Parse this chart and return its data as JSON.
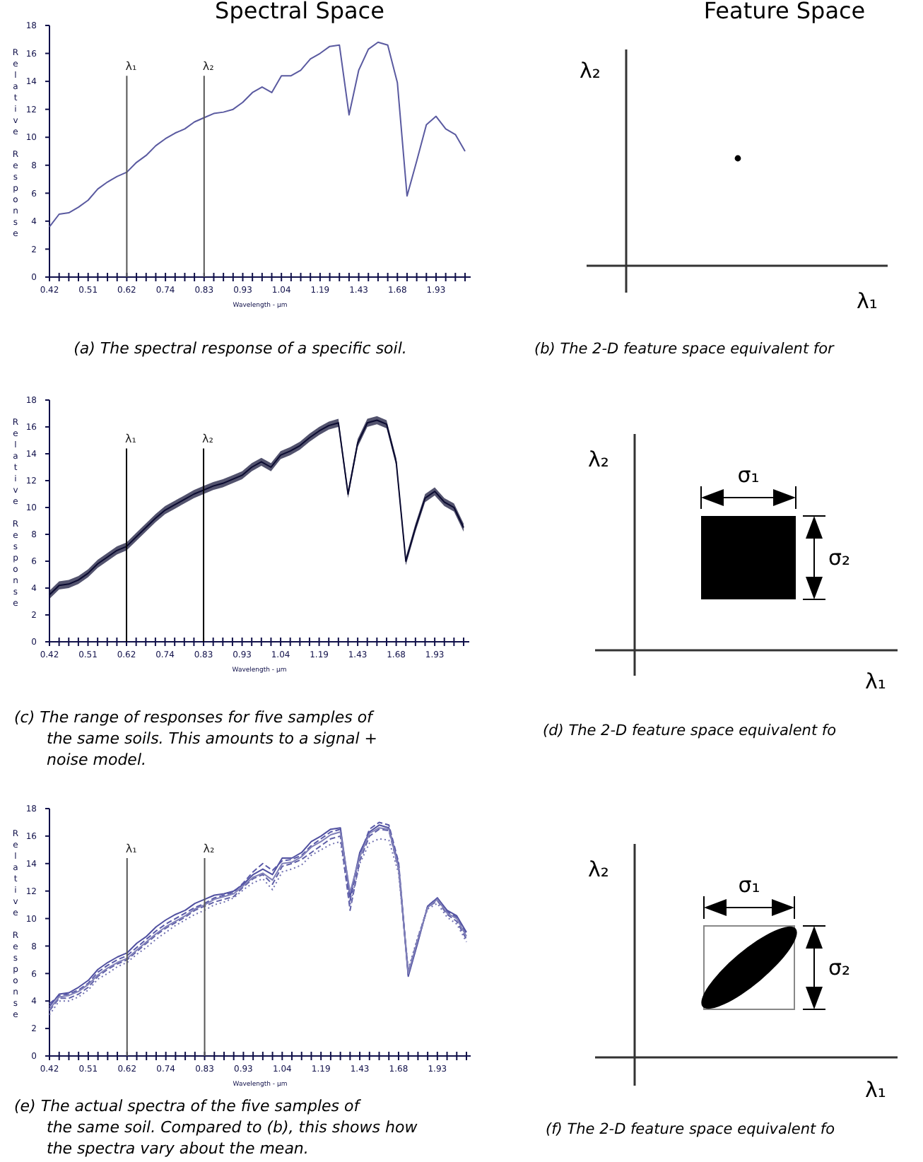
{
  "chart_data": [
    {
      "type": "line",
      "title": "Spectral Space",
      "xlabel": "Wavelength - µm",
      "ylabel": "Relative Response",
      "categories": [
        "0.42",
        null,
        null,
        null,
        "0.51",
        null,
        null,
        null,
        "0.62",
        null,
        null,
        null,
        "0.74",
        null,
        null,
        null,
        "0.83",
        null,
        null,
        null,
        "0.93",
        null,
        null,
        null,
        "1.04",
        null,
        null,
        null,
        "1.19",
        null,
        null,
        null,
        "1.43",
        null,
        null,
        null,
        "1.68",
        null,
        null,
        null,
        "1.93",
        null,
        null,
        null
      ],
      "ylim": [
        0,
        18
      ],
      "yticks": [
        0,
        2,
        4,
        6,
        8,
        10,
        12,
        14,
        16,
        18
      ],
      "series": [
        {
          "color": "#5a5aa0",
          "values": [
            3.6,
            4.5,
            4.6,
            5.0,
            5.5,
            6.3,
            6.8,
            7.2,
            7.5,
            8.2,
            8.7,
            9.4,
            9.9,
            10.3,
            10.6,
            11.1,
            11.4,
            11.7,
            11.8,
            12.0,
            12.5,
            13.2,
            13.6,
            13.2,
            14.4,
            14.4,
            14.8,
            15.6,
            16.0,
            16.5,
            16.6,
            11.6,
            14.8,
            16.3,
            16.8,
            16.6,
            13.9,
            5.8,
            8.3,
            10.9,
            11.5,
            10.6,
            10.2,
            9.0
          ]
        }
      ],
      "ref_lines": [
        {
          "axis": "x",
          "value": "0.62",
          "label": "λ₁",
          "color": "#555555"
        },
        {
          "axis": "x",
          "value": "0.83",
          "label": "λ₂",
          "color": "#555555"
        }
      ],
      "annotations": [
        "(a) The spectral response of a specific soil."
      ]
    },
    {
      "type": "other",
      "title": "Feature Space",
      "xlabel": "λ₁",
      "ylabel": "λ₂",
      "annotations": [
        "(b) The 2-D feature space equivalent for"
      ]
    },
    {
      "type": "line",
      "xlabel": "Wavelength - µm",
      "ylabel": "Relative Response",
      "categories": [
        "0.42",
        null,
        null,
        null,
        "0.51",
        null,
        null,
        null,
        "0.62",
        null,
        null,
        null,
        "0.74",
        null,
        null,
        null,
        "0.83",
        null,
        null,
        null,
        "0.93",
        null,
        null,
        null,
        "1.04",
        null,
        null,
        null,
        "1.19",
        null,
        null,
        null,
        "1.43",
        null,
        null,
        null,
        "1.68",
        null,
        null,
        null,
        "1.93",
        null,
        null,
        null
      ],
      "ylim": [
        0,
        18
      ],
      "yticks": [
        0,
        2,
        4,
        6,
        8,
        10,
        12,
        14,
        16,
        18
      ],
      "series": [
        {
          "color": "#0a0a30",
          "values": [
            3.5,
            4.2,
            4.3,
            4.6,
            5.1,
            5.8,
            6.3,
            6.8,
            7.1,
            7.8,
            8.5,
            9.2,
            9.8,
            10.2,
            10.6,
            11.0,
            11.3,
            11.6,
            11.8,
            12.1,
            12.4,
            13.0,
            13.4,
            13.0,
            13.9,
            14.2,
            14.6,
            15.2,
            15.7,
            16.1,
            16.3,
            11.0,
            14.8,
            16.3,
            16.5,
            16.2,
            13.4,
            6.0,
            8.5,
            10.7,
            11.2,
            10.4,
            10.0,
            8.5
          ],
          "lower": [
            3.2,
            3.9,
            4.0,
            4.3,
            4.8,
            5.5,
            6.0,
            6.5,
            6.8,
            7.5,
            8.2,
            8.9,
            9.5,
            9.9,
            10.3,
            10.7,
            11.0,
            11.3,
            11.5,
            11.8,
            12.1,
            12.7,
            13.1,
            12.7,
            13.6,
            13.9,
            14.3,
            14.9,
            15.4,
            15.8,
            16.0,
            10.7,
            14.5,
            16.0,
            16.2,
            15.9,
            13.1,
            5.7,
            8.2,
            10.4,
            10.9,
            10.1,
            9.7,
            8.2
          ],
          "upper": [
            3.8,
            4.5,
            4.6,
            4.9,
            5.4,
            6.1,
            6.6,
            7.1,
            7.4,
            8.1,
            8.8,
            9.5,
            10.1,
            10.5,
            10.9,
            11.3,
            11.6,
            11.9,
            12.1,
            12.4,
            12.7,
            13.3,
            13.7,
            13.3,
            14.2,
            14.5,
            14.9,
            15.5,
            16.0,
            16.4,
            16.6,
            11.3,
            15.1,
            16.6,
            16.8,
            16.5,
            13.7,
            6.3,
            8.8,
            11.0,
            11.5,
            10.7,
            10.3,
            8.8
          ]
        }
      ],
      "ref_lines": [
        {
          "axis": "x",
          "value": "0.62",
          "label": "λ₁",
          "color": "#000000"
        },
        {
          "axis": "x",
          "value": "0.83",
          "label": "λ₂",
          "color": "#000000"
        }
      ],
      "annotations": [
        "(c) The range of responses for five samples of the same soils. This amounts to a signal + noise model."
      ]
    },
    {
      "type": "other",
      "xlabel": "λ₁",
      "ylabel": "λ₂",
      "annotations": [
        "(d) The 2-D feature space equivalent fo",
        "σ₁",
        "σ₂"
      ]
    },
    {
      "type": "line",
      "xlabel": "Wavelength - µm",
      "ylabel": "Relative Response",
      "categories": [
        "0.42",
        null,
        null,
        null,
        "0.51",
        null,
        null,
        null,
        "0.62",
        null,
        null,
        null,
        "0.74",
        null,
        null,
        null,
        "0.83",
        null,
        null,
        null,
        "0.93",
        null,
        null,
        null,
        "1.04",
        null,
        null,
        null,
        "1.19",
        null,
        null,
        null,
        "1.43",
        null,
        null,
        null,
        "1.68",
        null,
        null,
        null,
        "1.93",
        null,
        null,
        null
      ],
      "ylim": [
        0,
        18
      ],
      "yticks": [
        0,
        2,
        4,
        6,
        8,
        10,
        12,
        14,
        16,
        18
      ],
      "series": [
        {
          "color": "#5050a0",
          "line_style": "solid",
          "values": [
            3.6,
            4.5,
            4.6,
            5.0,
            5.5,
            6.3,
            6.8,
            7.2,
            7.5,
            8.2,
            8.7,
            9.4,
            9.9,
            10.3,
            10.6,
            11.1,
            11.4,
            11.7,
            11.8,
            12.0,
            12.5,
            13.2,
            13.6,
            13.2,
            14.4,
            14.4,
            14.8,
            15.6,
            16.0,
            16.5,
            16.6,
            11.6,
            14.8,
            16.3,
            16.8,
            16.6,
            13.9,
            5.8,
            8.3,
            10.9,
            11.5,
            10.6,
            10.2,
            9.0
          ]
        },
        {
          "color": "#6060a8",
          "line_style": "dashed",
          "values": [
            3.3,
            4.2,
            4.2,
            4.5,
            5.0,
            5.8,
            6.3,
            6.7,
            7.0,
            7.6,
            8.2,
            8.8,
            9.3,
            9.7,
            10.1,
            10.6,
            10.9,
            11.2,
            11.4,
            11.6,
            12.3,
            12.9,
            13.2,
            12.5,
            13.8,
            14.0,
            14.3,
            14.8,
            15.3,
            15.8,
            16.0,
            10.6,
            14.2,
            16.0,
            16.5,
            16.4,
            13.6,
            6.1,
            8.6,
            10.8,
            11.3,
            10.3,
            9.8,
            8.5
          ]
        },
        {
          "color": "#7070b0",
          "line_style": "dotted",
          "values": [
            3.0,
            4.0,
            4.0,
            4.3,
            4.8,
            5.6,
            6.0,
            6.5,
            6.8,
            7.4,
            7.9,
            8.5,
            9.0,
            9.5,
            9.9,
            10.3,
            10.6,
            11.0,
            11.2,
            11.5,
            12.1,
            12.6,
            12.9,
            12.1,
            13.4,
            13.6,
            13.9,
            14.6,
            15.0,
            15.4,
            15.6,
            11.0,
            14.0,
            15.5,
            15.8,
            15.7,
            13.3,
            6.3,
            8.7,
            10.7,
            11.1,
            10.1,
            9.6,
            8.3
          ]
        },
        {
          "color": "#5858a8",
          "line_style": "dashed",
          "values": [
            3.8,
            4.4,
            4.5,
            4.8,
            5.3,
            6.1,
            6.6,
            7.0,
            7.3,
            7.9,
            8.5,
            9.1,
            9.6,
            10.0,
            10.4,
            10.8,
            11.1,
            11.5,
            11.7,
            11.9,
            12.6,
            13.4,
            14.0,
            13.5,
            14.2,
            14.3,
            14.6,
            15.3,
            15.8,
            16.3,
            16.5,
            11.3,
            14.6,
            16.5,
            17.0,
            16.8,
            14.1,
            5.9,
            8.4,
            10.9,
            11.5,
            10.5,
            10.1,
            8.8
          ]
        },
        {
          "color": "#8080b8",
          "line_style": "solid",
          "values": [
            3.4,
            4.3,
            4.4,
            4.7,
            5.2,
            5.9,
            6.4,
            6.8,
            7.1,
            7.7,
            8.3,
            8.9,
            9.4,
            9.8,
            10.2,
            10.7,
            11.0,
            11.4,
            11.6,
            11.8,
            12.4,
            13.0,
            13.3,
            12.8,
            14.0,
            14.1,
            14.5,
            15.2,
            15.6,
            16.1,
            16.3,
            11.9,
            14.5,
            16.2,
            16.6,
            16.5,
            13.7,
            6.0,
            8.5,
            10.8,
            11.4,
            10.4,
            10.0,
            8.7
          ]
        }
      ],
      "ref_lines": [
        {
          "axis": "x",
          "value": "0.62",
          "label": "λ₁",
          "color": "#555555"
        },
        {
          "axis": "x",
          "value": "0.83",
          "label": "λ₂",
          "color": "#555555"
        }
      ],
      "annotations": [
        "(e) The actual spectra of the five samples of the same soil. Compared to (b), this shows how the spectra vary about the mean."
      ]
    },
    {
      "type": "other",
      "xlabel": "λ₁",
      "ylabel": "λ₂",
      "annotations": [
        "(f) The 2-D feature space equivalent fo",
        "σ₁",
        "σ₂"
      ]
    }
  ]
}
